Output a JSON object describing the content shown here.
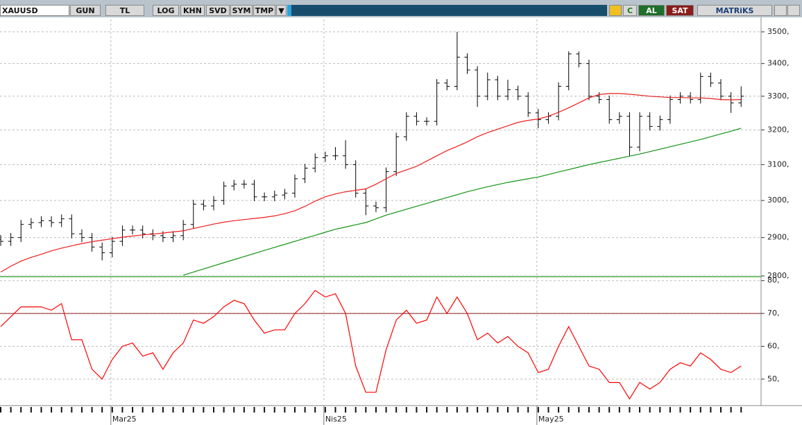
{
  "toolbar": {
    "symbol": "XAUUSD",
    "buttons": [
      "GUN",
      "TL",
      "LOG",
      "KHN",
      "SVD",
      "SYM",
      "TMP"
    ],
    "refresh": "C",
    "buy": "AL",
    "sell": "SAT",
    "brand": "MATRiKS"
  },
  "chart_data": [
    {
      "type": "ohlc",
      "log": true,
      "grid": true,
      "categories": [
        null,
        null,
        null,
        null,
        null,
        null,
        null,
        null,
        null,
        null,
        null,
        "Mar25",
        null,
        null,
        null,
        null,
        null,
        null,
        null,
        null,
        null,
        null,
        null,
        null,
        null,
        null,
        null,
        null,
        null,
        null,
        null,
        null,
        "Nis25",
        null,
        null,
        null,
        null,
        null,
        null,
        null,
        null,
        null,
        null,
        null,
        null,
        null,
        null,
        null,
        null,
        null,
        null,
        null,
        null,
        "May25",
        null,
        null,
        null,
        null,
        null,
        null,
        null,
        null,
        null,
        null,
        null,
        null,
        null,
        null,
        null,
        null,
        null,
        null,
        null,
        null
      ],
      "open": [
        2895,
        2890,
        2900,
        2935,
        2940,
        2945,
        2940,
        2950,
        2910,
        2900,
        2875,
        2860,
        2890,
        2920,
        2920,
        2910,
        2905,
        2900,
        2905,
        2935,
        2990,
        2985,
        3000,
        3040,
        3045,
        3045,
        3010,
        3010,
        3015,
        3020,
        3060,
        3090,
        3120,
        3125,
        3125,
        3100,
        3020,
        2985,
        2980,
        3080,
        3180,
        3240,
        3225,
        3225,
        3340,
        3330,
        3420,
        3380,
        3300,
        3350,
        3300,
        3320,
        3300,
        3250,
        3230,
        3240,
        3330,
        3430,
        3400,
        3300,
        3290,
        3230,
        3240,
        3150,
        3240,
        3210,
        3230,
        3290,
        3300,
        3290,
        3360,
        3340,
        3300,
        3280
      ],
      "high": [
        2907,
        2912,
        2947,
        2952,
        2957,
        2957,
        2962,
        2962,
        2922,
        2912,
        2887,
        2902,
        2932,
        2932,
        2932,
        2922,
        2917,
        2917,
        2947,
        3002,
        3002,
        3012,
        3052,
        3057,
        3057,
        3057,
        3022,
        3027,
        3032,
        3072,
        3102,
        3132,
        3137,
        3150,
        3170,
        3112,
        3032,
        2997,
        3092,
        3192,
        3252,
        3252,
        3237,
        3352,
        3352,
        3500,
        3432,
        3392,
        3372,
        3362,
        3350,
        3332,
        3312,
        3262,
        3252,
        3342,
        3438,
        3438,
        3412,
        3312,
        3302,
        3252,
        3252,
        3252,
        3252,
        3242,
        3302,
        3312,
        3312,
        3372,
        3372,
        3352,
        3312,
        3330
      ],
      "low": [
        2878,
        2878,
        2888,
        2923,
        2928,
        2928,
        2928,
        2898,
        2888,
        2863,
        2840,
        2848,
        2878,
        2908,
        2898,
        2893,
        2888,
        2888,
        2893,
        2923,
        2973,
        2973,
        2988,
        3028,
        3033,
        2998,
        2998,
        2998,
        3003,
        3008,
        3048,
        3078,
        3108,
        3113,
        3088,
        3008,
        2960,
        2968,
        2968,
        3068,
        3168,
        3213,
        3213,
        3213,
        3318,
        3318,
        3368,
        3268,
        3288,
        3288,
        3288,
        3288,
        3238,
        3205,
        3218,
        3228,
        3318,
        3388,
        3288,
        3278,
        3218,
        3218,
        3125,
        3138,
        3198,
        3198,
        3218,
        3278,
        3278,
        3278,
        3328,
        3288,
        3250,
        3268
      ],
      "close": [
        2890,
        2900,
        2935,
        2940,
        2945,
        2940,
        2950,
        2910,
        2900,
        2875,
        2860,
        2890,
        2920,
        2920,
        2910,
        2905,
        2900,
        2905,
        2935,
        2990,
        2985,
        3000,
        3040,
        3045,
        3045,
        3010,
        3010,
        3015,
        3020,
        3060,
        3090,
        3120,
        3125,
        3125,
        3100,
        3020,
        2985,
        2980,
        3080,
        3180,
        3240,
        3225,
        3225,
        3340,
        3330,
        3420,
        3380,
        3300,
        3350,
        3300,
        3320,
        3300,
        3250,
        3230,
        3240,
        3330,
        3430,
        3400,
        3300,
        3290,
        3230,
        3240,
        3150,
        3240,
        3210,
        3230,
        3290,
        3300,
        3290,
        3360,
        3340,
        3300,
        3280,
        3300
      ],
      "color": "#000000",
      "lines": [
        {
          "color": "#ee1c1c",
          "values": [
            2810,
            2825,
            2838,
            2848,
            2856,
            2865,
            2872,
            2878,
            2884,
            2889,
            2893,
            2897,
            2901,
            2904,
            2907,
            2909,
            2912,
            2915,
            2918,
            2924,
            2930,
            2936,
            2941,
            2945,
            2948,
            2951,
            2954,
            2958,
            2964,
            2972,
            2984,
            2998,
            3010,
            3018,
            3024,
            3028,
            3032,
            3045,
            3060,
            3075,
            3085,
            3095,
            3110,
            3125,
            3140,
            3152,
            3165,
            3180,
            3192,
            3202,
            3212,
            3222,
            3228,
            3232,
            3240,
            3252,
            3265,
            3280,
            3295,
            3305,
            3308,
            3308,
            3306,
            3303,
            3300,
            3298,
            3296,
            3296,
            3295,
            3295,
            3293,
            3290,
            3289,
            3290
          ]
        },
        {
          "color": "#119311",
          "values": [
            null,
            null,
            null,
            null,
            null,
            null,
            null,
            null,
            null,
            null,
            null,
            null,
            null,
            null,
            null,
            null,
            null,
            null,
            2802,
            2810,
            2818,
            2826,
            2834,
            2842,
            2850,
            2858,
            2866,
            2874,
            2882,
            2890,
            2898,
            2906,
            2914,
            2922,
            2928,
            2934,
            2940,
            2950,
            2960,
            2968,
            2976,
            2984,
            2992,
            3000,
            3008,
            3016,
            3024,
            3031,
            3038,
            3044,
            3050,
            3055,
            3060,
            3065,
            3072,
            3079,
            3086,
            3093,
            3100,
            3106,
            3112,
            3118,
            3124,
            3130,
            3137,
            3144,
            3151,
            3158,
            3165,
            3172,
            3180,
            3188,
            3196,
            3205
          ]
        }
      ],
      "ylim": [
        2800,
        3540
      ],
      "yticks": [
        {
          "value": 2800,
          "label": "2800,"
        },
        {
          "value": 2900,
          "label": "2900,"
        },
        {
          "value": 3000,
          "label": "3000,"
        },
        {
          "value": 3100,
          "label": "3100,"
        },
        {
          "value": 3200,
          "label": "3200,"
        },
        {
          "value": 3300,
          "label": "3300,"
        },
        {
          "value": 3400,
          "label": "3400,"
        },
        {
          "value": 3500,
          "label": "3500,"
        }
      ]
    },
    {
      "type": "line",
      "grid": true,
      "color": "#ff0000",
      "hline": 70,
      "hline_color": "#8b1a1a",
      "values": [
        66,
        69,
        72,
        72,
        72,
        71,
        73,
        62,
        62,
        53,
        50,
        56,
        60,
        61,
        57,
        58,
        53,
        58,
        61,
        68,
        67,
        69,
        72,
        74,
        73,
        68,
        64,
        65,
        65,
        70,
        73,
        77,
        75,
        76,
        70,
        54,
        46,
        46,
        59,
        68,
        71,
        67,
        68,
        75,
        70,
        75,
        70,
        62,
        64,
        61,
        63,
        60,
        58,
        52,
        53,
        60,
        66,
        60,
        54,
        53,
        49,
        49,
        44,
        49,
        47,
        49,
        53,
        55,
        54,
        58,
        56,
        53,
        52,
        54
      ],
      "ylim": [
        43,
        81
      ],
      "yticks": [
        {
          "value": 50,
          "label": "50,"
        },
        {
          "value": 60,
          "label": "60,"
        },
        {
          "value": 70,
          "label": "70,"
        },
        {
          "value": 80,
          "label": "80,"
        }
      ]
    }
  ]
}
